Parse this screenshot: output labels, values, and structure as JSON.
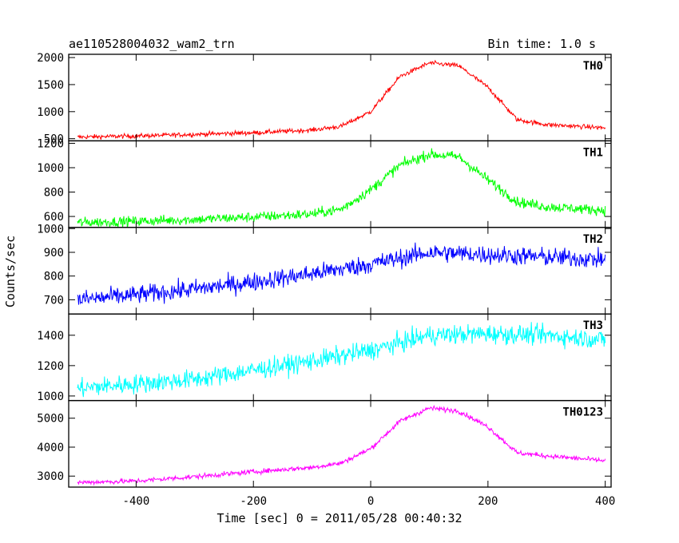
{
  "chart_data": {
    "type": "line",
    "title": "ae110528004032_wam2_trn",
    "subtitle": "Bin time: 1.0 s",
    "xlabel": "Time [sec] 0 = 2011/05/28 00:40:32",
    "ylabel": "Counts/sec",
    "xlim": [
      -515,
      410
    ],
    "x_ticks": [
      -400,
      -200,
      0,
      200,
      400
    ],
    "panels": [
      {
        "name": "TH0",
        "color": "#ff0000",
        "ylim": [
          460,
          2060
        ],
        "y_ticks": [
          500,
          1000,
          1500,
          2000
        ],
        "noise": 30,
        "x": [
          -500,
          -400,
          -300,
          -200,
          -100,
          -50,
          0,
          50,
          100,
          150,
          200,
          250,
          300,
          400
        ],
        "y": [
          530,
          550,
          580,
          610,
          660,
          730,
          1000,
          1650,
          1900,
          1850,
          1450,
          850,
          760,
          700
        ]
      },
      {
        "name": "TH1",
        "color": "#00ff00",
        "ylim": [
          510,
          1220
        ],
        "y_ticks": [
          600,
          800,
          1000,
          1200
        ],
        "noise": 30,
        "x": [
          -500,
          -400,
          -300,
          -200,
          -100,
          -50,
          0,
          50,
          100,
          150,
          200,
          250,
          300,
          400
        ],
        "y": [
          550,
          560,
          575,
          595,
          620,
          660,
          820,
          1020,
          1110,
          1090,
          900,
          720,
          680,
          650
        ]
      },
      {
        "name": "TH2",
        "color": "#0000ff",
        "ylim": [
          640,
          1005
        ],
        "y_ticks": [
          700,
          800,
          900,
          1000
        ],
        "noise": 28,
        "x": [
          -500,
          -400,
          -300,
          -200,
          -100,
          0,
          100,
          200,
          300,
          400
        ],
        "y": [
          700,
          720,
          745,
          775,
          810,
          850,
          900,
          890,
          880,
          870
        ]
      },
      {
        "name": "TH3",
        "color": "#00ffff",
        "ylim": [
          970,
          1540
        ],
        "y_ticks": [
          1000,
          1200,
          1400
        ],
        "noise": 45,
        "x": [
          -500,
          -400,
          -300,
          -200,
          -100,
          0,
          100,
          200,
          300,
          400
        ],
        "y": [
          1050,
          1080,
          1110,
          1170,
          1230,
          1300,
          1400,
          1410,
          1400,
          1370
        ]
      },
      {
        "name": "TH0123",
        "color": "#ff00ff",
        "ylim": [
          2620,
          5610
        ],
        "y_ticks": [
          3000,
          4000,
          5000
        ],
        "noise": 60,
        "x": [
          -500,
          -400,
          -300,
          -200,
          -100,
          -50,
          0,
          50,
          100,
          150,
          200,
          250,
          300,
          400
        ],
        "y": [
          2780,
          2830,
          2980,
          3150,
          3300,
          3450,
          3950,
          4900,
          5350,
          5250,
          4700,
          3800,
          3700,
          3530
        ]
      }
    ]
  }
}
